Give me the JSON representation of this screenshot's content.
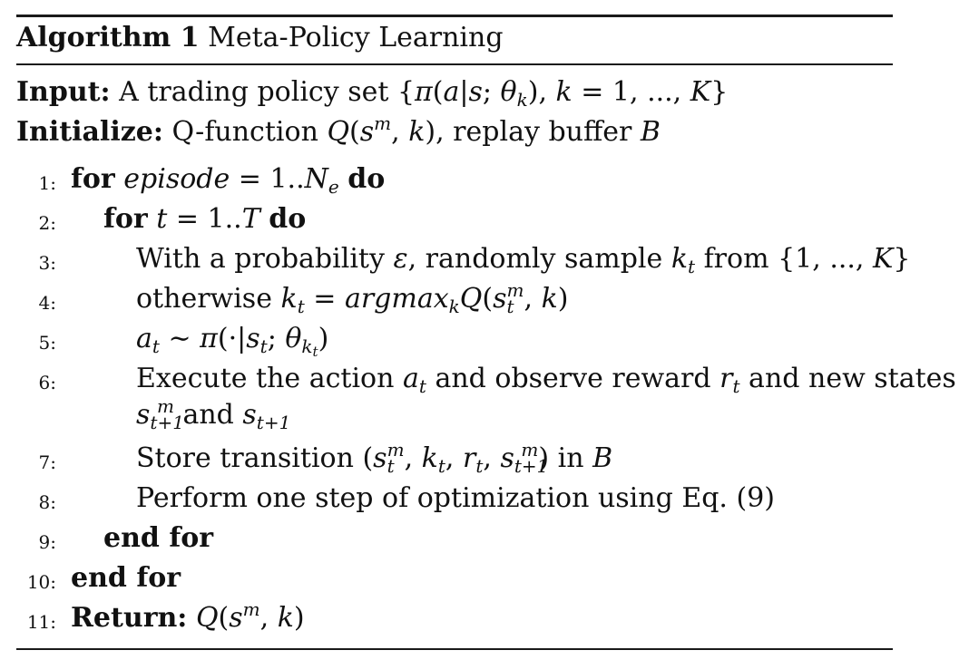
{
  "algorithm": {
    "caption_label": "Algorithm 1",
    "caption_title": "Meta-Policy Learning",
    "input_label": "Input:",
    "input_text": "A trading policy set {π(a|s; θk), k = 1, ..., K}",
    "initialize_label": "Initialize:",
    "initialize_text": "Q-function Q(s^m, k), replay buffer B",
    "line_numbers": [
      "1:",
      "2:",
      "3:",
      "4:",
      "5:",
      "6:",
      "7:",
      "8:",
      "9:",
      "10:",
      "11:"
    ],
    "lines": [
      "for episode = 1..Ne do",
      "for t = 1..T do",
      "With a probability ε, randomly sample kt from {1, ..., K}",
      "otherwise kt = argmaxk Q(s_t^m, k)",
      "at ∼ π(·|st; θkt)",
      "Execute the action at and observe reward rt and new states s_{t+1}^m and st+1",
      "Store transition (s_t^m, kt, rt, s_{t+1}^m) in B",
      "Perform one step of optimization using Eq. (9)",
      "end for",
      "end for",
      "Return: Q(s^m, k)"
    ]
  }
}
